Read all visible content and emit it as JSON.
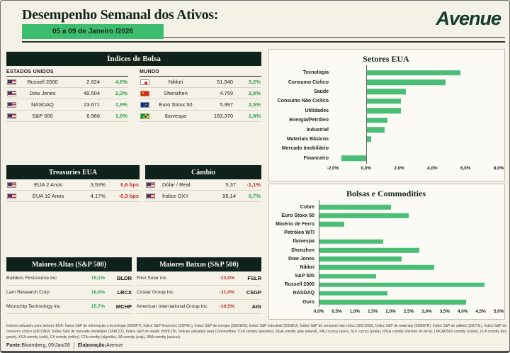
{
  "header": {
    "title": "Desempenho Semanal dos Ativos:",
    "date_banner": "05 a 09 de Janeiro /2026",
    "logo": "Avenue"
  },
  "indices": {
    "title": "Índices de Bolsa",
    "us": {
      "label": "ESTADOS UNIDOS",
      "rows": [
        {
          "flag": "us",
          "name": "Russell 2000",
          "value": "2.624",
          "change": "4,6%",
          "tone": "green"
        },
        {
          "flag": "us",
          "name": "Dow Jones",
          "value": "49.504",
          "change": "2,3%",
          "tone": "green"
        },
        {
          "flag": "us",
          "name": "NASDAQ",
          "value": "23.671",
          "change": "1,9%",
          "tone": "green"
        },
        {
          "flag": "us",
          "name": "S&P 500",
          "value": "6.966",
          "change": "1,6%",
          "tone": "green"
        }
      ]
    },
    "world": {
      "label": "MUNDO",
      "rows": [
        {
          "flag": "jp",
          "name": "Nikkei",
          "value": "51.940",
          "change": "3,2%",
          "tone": "green"
        },
        {
          "flag": "cn",
          "name": "Shenzhen",
          "value": "4.759",
          "change": "2,8%",
          "tone": "green"
        },
        {
          "flag": "eu",
          "name": "Euro Stoxx 50",
          "value": "5.997",
          "change": "2,5%",
          "tone": "green"
        },
        {
          "flag": "br",
          "name": "Ibovespa",
          "value": "163.370",
          "change": "1,8%",
          "tone": "green"
        }
      ]
    }
  },
  "treasuries": {
    "title": "Treasuries EUA",
    "rows": [
      {
        "flag": "us",
        "name": "EUA 2 Anos",
        "value": "3,53%",
        "change": "0,6 bps",
        "tone": "red"
      },
      {
        "flag": "us",
        "name": "EUA 10 Anos",
        "value": "4,17%",
        "change": "-0,3 bps",
        "tone": "red"
      }
    ]
  },
  "cambio": {
    "title": "Câmbio",
    "rows": [
      {
        "flag": "us",
        "name": "Dólar / Real",
        "value": "5,37",
        "change": "-1,1%",
        "tone": "red"
      },
      {
        "flag": "us",
        "name": "Índice DXY",
        "value": "99,14",
        "change": "0,7%",
        "tone": "green"
      }
    ]
  },
  "movers_up": {
    "title": "Maiores Altas (S&P 500)",
    "rows": [
      {
        "name": "Builders Firstsource Inc",
        "change": "19,1%",
        "ticker": "BLDR",
        "tone": "green"
      },
      {
        "name": "Lam Research Corp",
        "change": "18,0%",
        "ticker": "LRCX",
        "tone": "green"
      },
      {
        "name": "Microchip Technology Inc",
        "change": "15,7%",
        "ticker": "MCHP",
        "tone": "green"
      }
    ]
  },
  "movers_down": {
    "title": "Maiores Baixas (S&P 500)",
    "rows": [
      {
        "name": "First Solar Inc",
        "change": "-13,0%",
        "ticker": "FSLR",
        "tone": "red"
      },
      {
        "name": "Costar Group Inc",
        "change": "-11,0%",
        "ticker": "CSGP",
        "tone": "red"
      },
      {
        "name": "American International Group Inc",
        "change": "-10,5%",
        "ticker": "AIG",
        "tone": "red"
      }
    ]
  },
  "chart_data": [
    {
      "type": "bar",
      "orientation": "horizontal",
      "title": "Setores EUA",
      "categories": [
        "Tecnologia",
        "Consumo Cíclico",
        "Saúde",
        "Consumo Não Cíclico",
        "Utilidades",
        "Energia/Petróleo",
        "Industrial",
        "Materiais Básicos",
        "Mercado Imobiliário",
        "Financeiro"
      ],
      "values": [
        5.7,
        4.8,
        2.4,
        2.1,
        2.1,
        1.3,
        1.1,
        0.3,
        0.0,
        -1.5
      ],
      "unit": "%",
      "xlim": [
        -2,
        8
      ],
      "tick_values": [
        -2,
        0,
        2,
        4,
        6,
        8
      ],
      "ticks": [
        "-2,0%",
        "0,0%",
        "2,0%",
        "4,0%",
        "6,0%",
        "8,0%"
      ],
      "bar_color": "#4abd76",
      "grid": false,
      "legend": "none"
    },
    {
      "type": "bar",
      "orientation": "horizontal",
      "title": "Bolsas e Commodities",
      "categories": [
        "Cobre",
        "Euro Stoxx 50",
        "Minério de Ferro",
        "Petróleo WTI",
        "Ibovespa",
        "Shenzhen",
        "Dow Jones",
        "Nikkei",
        "S&P 500",
        "Russell 2000",
        "NASDAQ",
        "Ouro"
      ],
      "values": [
        2.0,
        2.5,
        0.7,
        0.0,
        1.8,
        2.8,
        2.3,
        3.2,
        1.6,
        4.6,
        1.9,
        4.1
      ],
      "unit": "%",
      "xlim": [
        0,
        5
      ],
      "tick_values": [
        0,
        0.5,
        1,
        1.5,
        2,
        2.5,
        3,
        3.5,
        4,
        4.5,
        5
      ],
      "ticks": [
        "0,0%",
        "0,5%",
        "1,0%",
        "1,5%",
        "2,0%",
        "2,5%",
        "3,0%",
        "3,5%",
        "4,0%",
        "4,5%",
        "5,0%"
      ],
      "bar_color": "#4abd76",
      "grid": false,
      "legend": "none"
    }
  ],
  "footer": {
    "disclaimer": "Índices utilizados para Setores EUA: Índice S&P de informação e tecnologia (S5INFT), Índice S&P financeiro (S5FINL), Índice S&P de energia (S5ENRS), Índice S&P industrial (S5INDU), Índice S&P de consumo não cíclico (S5CONS), Índice S&P de materiais (S5MATR), Índice S&P de utilities (S5UTIL), Índice S&P de consumo cíclico (S5COND), Índice S&P de mercado imobiliário (S5RLST), Índice S&P de saúde (S5HLTH). Índices utilizados para Commodities: CLA comdty (petróleo), NGA comdty (gás natural), XAU curncy (ouro), SLV curncy (prata), IOEA comdty (minério de ferro), LMCADS03 comdty (cobre), LCA comdty (boi gordo), KCA comdty (café), CA comdty (milho), CTA comdty (algodão), SA comdty (soja), SBA comdty (açúcar).",
    "fonte_label": "Fonte:",
    "fonte_value": " Bloomberg, 09/Jan/26",
    "elaboracao_label": "Elaboração:",
    "elaboracao_value": " Avenue"
  },
  "colors": {
    "background": "#f4f1e7",
    "header_bar": "#0e211a",
    "banner_green": "#3dbe6f",
    "bar_green": "#4abd76",
    "positive_text": "#2d9e4c",
    "negative_text": "#bf2b20",
    "logo_green": "#123b2b"
  }
}
